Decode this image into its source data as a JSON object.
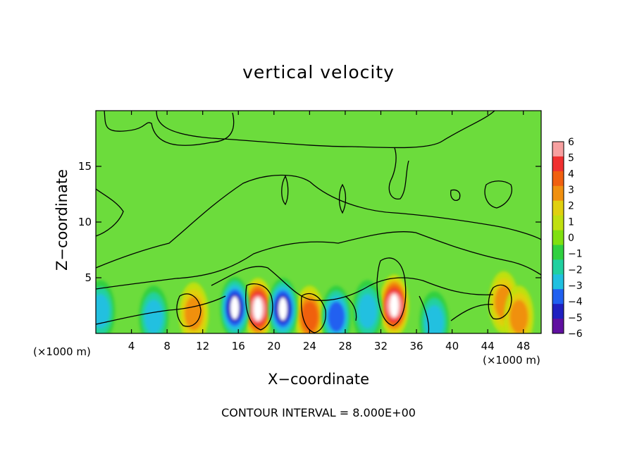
{
  "chart_data": {
    "type": "heatmap",
    "title": "vertical velocity",
    "xlabel": "X−coordinate",
    "ylabel": "Z−coordinate",
    "x_unit_left": "(×1000 m)",
    "x_unit_right": "(×1000 m)",
    "note": "CONTOUR INTERVAL = 8.000E+00",
    "xlim": [
      0,
      50
    ],
    "ylim": [
      0,
      20
    ],
    "x_ticks": [
      4,
      8,
      12,
      16,
      20,
      24,
      28,
      32,
      36,
      40,
      44,
      48
    ],
    "y_ticks": [
      5,
      10,
      15
    ],
    "colorbar": {
      "ticks": [
        "6",
        "5",
        "4",
        "3",
        "2",
        "1",
        "0",
        "−1",
        "−2",
        "−3",
        "−4",
        "−5",
        "−6"
      ],
      "colors": [
        "#f7a0a0",
        "#f03030",
        "#f06010",
        "#f09010",
        "#e0d010",
        "#c0e010",
        "#80e010",
        "#30d040",
        "#20d0a0",
        "#20c0e0",
        "#2060f0",
        "#2020c0",
        "#6010a0"
      ]
    },
    "background_color": "#6cdc3c",
    "features": [
      {
        "kind": "updraft",
        "x": 11,
        "z": 1.8,
        "value": 3
      },
      {
        "kind": "updraft",
        "x": 18.2,
        "z": 2.2,
        "value": 6
      },
      {
        "kind": "updraft",
        "x": 24,
        "z": 1.5,
        "value": 4
      },
      {
        "kind": "updraft",
        "x": 33.5,
        "z": 2.5,
        "value": 6
      },
      {
        "kind": "updraft",
        "x": 45.8,
        "z": 2.8,
        "value": 3
      },
      {
        "kind": "updraft",
        "x": 47.5,
        "z": 1.5,
        "value": 3
      },
      {
        "kind": "downdraft",
        "x": 15.6,
        "z": 2.3,
        "value": -5
      },
      {
        "kind": "downdraft",
        "x": 21,
        "z": 2.2,
        "value": -5
      },
      {
        "kind": "downdraft",
        "x": 27,
        "z": 1.5,
        "value": -4
      },
      {
        "kind": "downdraft",
        "x": 30.5,
        "z": 2,
        "value": -3
      },
      {
        "kind": "downdraft",
        "x": 38,
        "z": 1,
        "value": -3
      },
      {
        "kind": "downdraft",
        "x": 0.5,
        "z": 2,
        "value": -3
      },
      {
        "kind": "downdraft",
        "x": 6.5,
        "z": 1.5,
        "value": -3
      }
    ]
  }
}
